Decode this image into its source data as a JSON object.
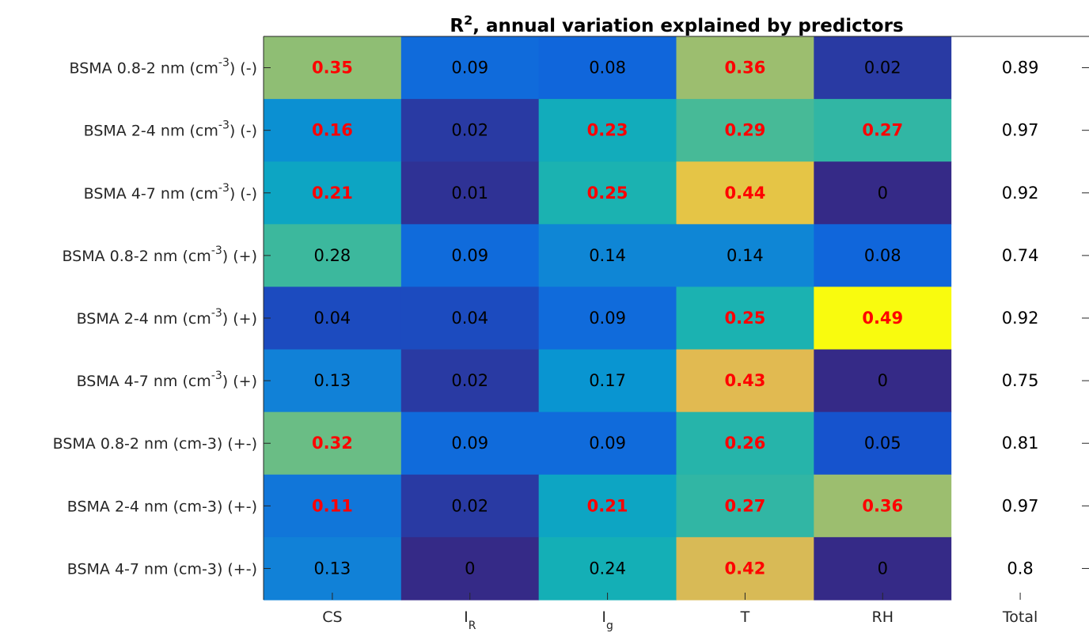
{
  "chart_data": {
    "type": "heatmap",
    "title": "R², annual variation explained by predictors",
    "title_main": "R",
    "title_sup": "2",
    "title_rest": ", annual variation explained by predictors",
    "rows": [
      {
        "pre": "BSMA 0.8-2 nm (cm",
        "sup": "-3",
        "post": ") (-)"
      },
      {
        "pre": "BSMA 2-4 nm (cm",
        "sup": "-3",
        "post": ") (-)"
      },
      {
        "pre": "BSMA 4-7 nm (cm",
        "sup": "-3",
        "post": ") (-)"
      },
      {
        "pre": "BSMA 0.8-2 nm (cm",
        "sup": "-3",
        "post": ") (+)"
      },
      {
        "pre": "BSMA 2-4 nm (cm",
        "sup": "-3",
        "post": ") (+)"
      },
      {
        "pre": "BSMA 4-7 nm (cm",
        "sup": "-3",
        "post": ") (+)"
      },
      {
        "pre": "BSMA 0.8-2 nm (cm-3) (+-)",
        "sup": "",
        "post": ""
      },
      {
        "pre": "BSMA 2-4 nm (cm-3) (+-)",
        "sup": "",
        "post": ""
      },
      {
        "pre": "BSMA 4-7 nm (cm-3) (+-)",
        "sup": "",
        "post": ""
      }
    ],
    "columns": [
      {
        "main": "CS",
        "sub": ""
      },
      {
        "main": "I",
        "sub": "R"
      },
      {
        "main": "I",
        "sub": "g"
      },
      {
        "main": "T",
        "sub": ""
      },
      {
        "main": "RH",
        "sub": ""
      },
      {
        "main": "Total",
        "sub": ""
      }
    ],
    "values": [
      [
        0.35,
        0.09,
        0.08,
        0.36,
        0.02,
        0.89
      ],
      [
        0.16,
        0.02,
        0.23,
        0.29,
        0.27,
        0.97
      ],
      [
        0.21,
        0.01,
        0.25,
        0.44,
        0,
        0.92
      ],
      [
        0.28,
        0.09,
        0.14,
        0.14,
        0.08,
        0.74
      ],
      [
        0.04,
        0.04,
        0.09,
        0.25,
        0.49,
        0.92
      ],
      [
        0.13,
        0.02,
        0.17,
        0.43,
        0,
        0.75
      ],
      [
        0.32,
        0.09,
        0.09,
        0.26,
        0.05,
        0.81
      ],
      [
        0.11,
        0.02,
        0.21,
        0.27,
        0.36,
        0.97
      ],
      [
        0.13,
        0,
        0.24,
        0.42,
        0,
        0.8
      ]
    ],
    "highlight": [
      [
        true,
        false,
        false,
        true,
        false,
        false
      ],
      [
        true,
        false,
        true,
        true,
        true,
        false
      ],
      [
        true,
        false,
        true,
        true,
        false,
        false
      ],
      [
        false,
        false,
        false,
        false,
        false,
        false
      ],
      [
        false,
        false,
        false,
        true,
        true,
        false
      ],
      [
        false,
        false,
        false,
        true,
        false,
        false
      ],
      [
        true,
        false,
        false,
        true,
        false,
        false
      ],
      [
        true,
        false,
        true,
        true,
        true,
        false
      ],
      [
        false,
        false,
        false,
        true,
        false,
        false
      ]
    ],
    "colormap": "parula",
    "color_range": [
      0,
      0.49
    ],
    "colored_columns": 5,
    "highlight_color": "#ff0000",
    "normal_text_color": "#000000"
  }
}
